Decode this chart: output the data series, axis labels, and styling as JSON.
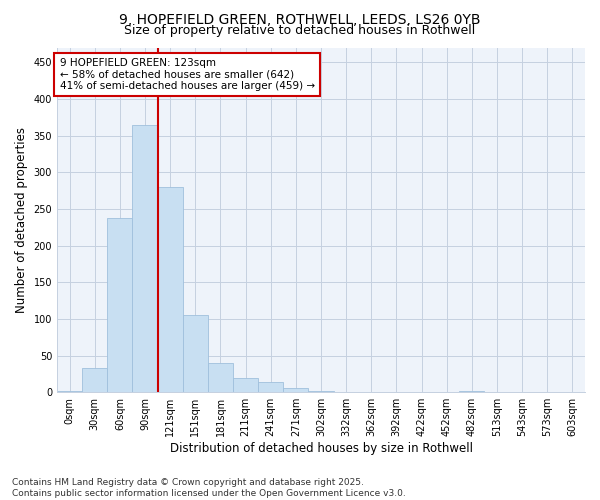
{
  "title_line1": "9, HOPEFIELD GREEN, ROTHWELL, LEEDS, LS26 0YB",
  "title_line2": "Size of property relative to detached houses in Rothwell",
  "xlabel": "Distribution of detached houses by size in Rothwell",
  "ylabel": "Number of detached properties",
  "bar_color": "#c8dff2",
  "bar_edge_color": "#a0c0dc",
  "background_color": "#ffffff",
  "plot_bg_color": "#eef3fa",
  "grid_color": "#c5d0e0",
  "categories": [
    "0sqm",
    "30sqm",
    "60sqm",
    "90sqm",
    "121sqm",
    "151sqm",
    "181sqm",
    "211sqm",
    "241sqm",
    "271sqm",
    "302sqm",
    "332sqm",
    "362sqm",
    "392sqm",
    "422sqm",
    "452sqm",
    "482sqm",
    "513sqm",
    "543sqm",
    "573sqm",
    "603sqm"
  ],
  "values": [
    2,
    33,
    237,
    365,
    280,
    105,
    40,
    20,
    14,
    6,
    2,
    0,
    0,
    0,
    0,
    0,
    1,
    0,
    0,
    0,
    0
  ],
  "red_line_x": 4.0,
  "annotation_text": "9 HOPEFIELD GREEN: 123sqm\n← 58% of detached houses are smaller (642)\n41% of semi-detached houses are larger (459) →",
  "annotation_box_color": "#ffffff",
  "annotation_box_edge": "#cc0000",
  "red_line_color": "#cc0000",
  "ylim": [
    0,
    470
  ],
  "yticks": [
    0,
    50,
    100,
    150,
    200,
    250,
    300,
    350,
    400,
    450
  ],
  "footnote": "Contains HM Land Registry data © Crown copyright and database right 2025.\nContains public sector information licensed under the Open Government Licence v3.0.",
  "title_fontsize": 10,
  "subtitle_fontsize": 9,
  "axis_label_fontsize": 8.5,
  "tick_fontsize": 7,
  "annotation_fontsize": 7.5,
  "footnote_fontsize": 6.5
}
